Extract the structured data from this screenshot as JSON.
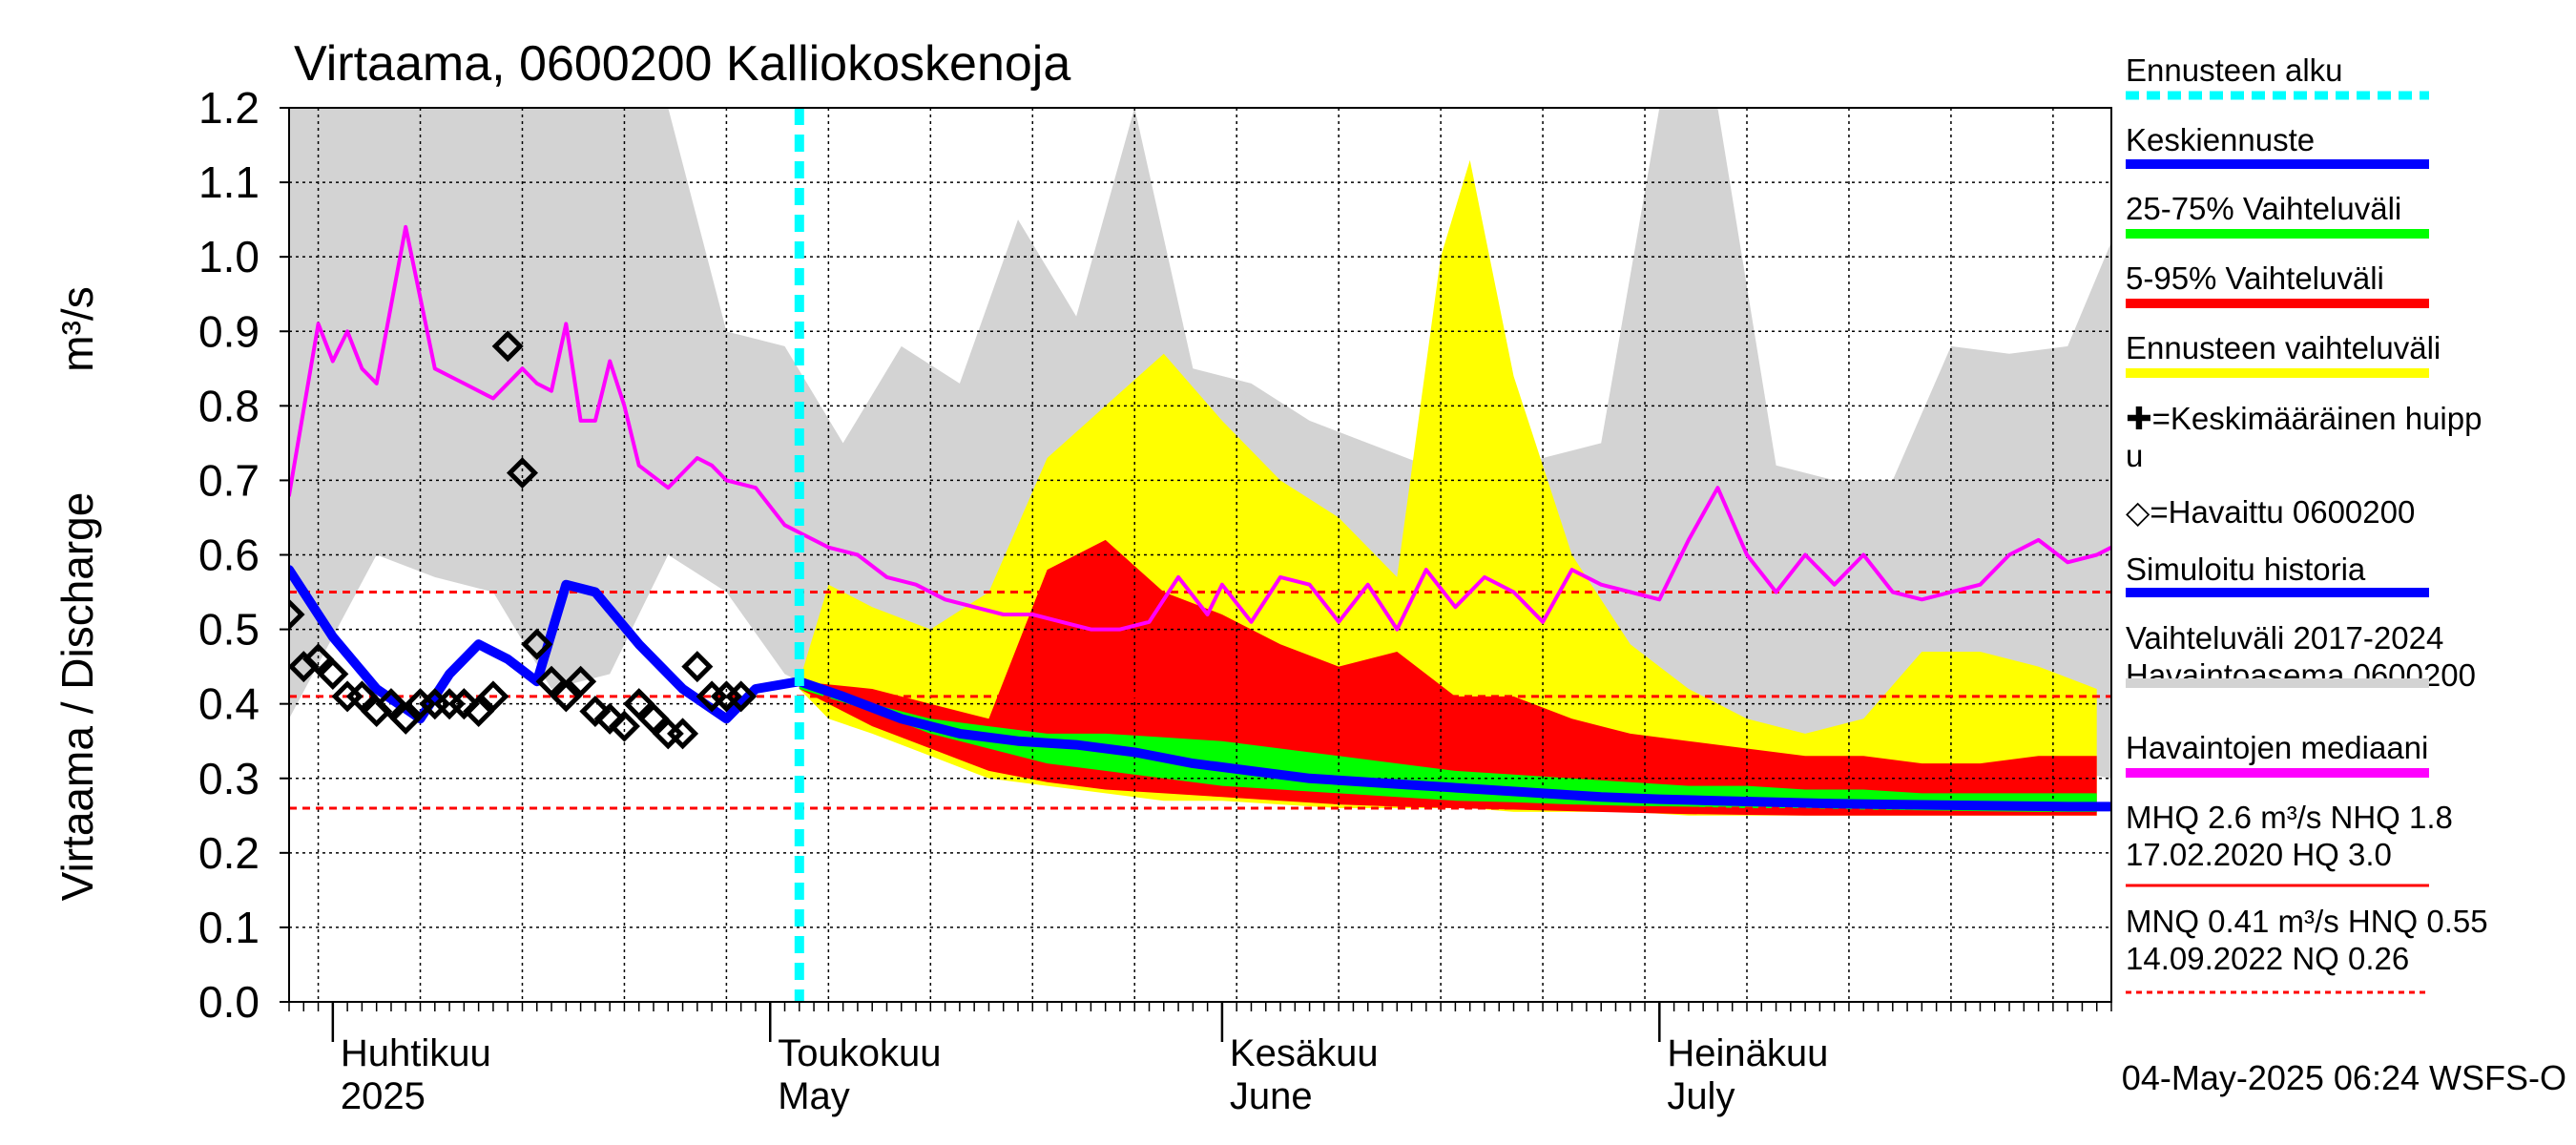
{
  "chart_data": {
    "type": "area",
    "title": "Virtaama, 0600200 Kalliokoskenoja",
    "ylabel": "Virtaama / Discharge",
    "yunit": "m³/s",
    "ylim": [
      0.0,
      1.2
    ],
    "yticks": [
      "0.0",
      "0.1",
      "0.2",
      "0.3",
      "0.4",
      "0.5",
      "0.6",
      "0.7",
      "0.8",
      "0.9",
      "1.0",
      "1.1",
      "1.2"
    ],
    "x_start": "2025-03-29",
    "x_end": "2025-08-01",
    "month_labels": [
      {
        "date": "2025-04-01",
        "fi": "Huhtikuu",
        "en": "2025"
      },
      {
        "date": "2025-05-01",
        "fi": "Toukokuu",
        "en": "May"
      },
      {
        "date": "2025-06-01",
        "fi": "Kesäkuu",
        "en": "June"
      },
      {
        "date": "2025-07-01",
        "fi": "Heinäkuu",
        "en": "July"
      }
    ],
    "forecast_start": "2025-05-03",
    "reference_lines": [
      {
        "name": "HNQ",
        "value": 0.55
      },
      {
        "name": "MNQ",
        "value": 0.41
      },
      {
        "name": "NQ",
        "value": 0.26
      }
    ],
    "series": [
      {
        "name": "Vaihteluväli 2017-2024 Havaintoasema 0600200",
        "kind": "band",
        "x": [
          "2025-03-29",
          "2025-04-04",
          "2025-04-08",
          "2025-04-12",
          "2025-04-16",
          "2025-04-20",
          "2025-04-24",
          "2025-04-28",
          "2025-05-02",
          "2025-05-06",
          "2025-05-10",
          "2025-05-14",
          "2025-05-18",
          "2025-05-22",
          "2025-05-26",
          "2025-05-30",
          "2025-06-03",
          "2025-06-07",
          "2025-06-11",
          "2025-06-15",
          "2025-06-19",
          "2025-06-23",
          "2025-06-27",
          "2025-07-01",
          "2025-07-05",
          "2025-07-09",
          "2025-07-13",
          "2025-07-17",
          "2025-07-21",
          "2025-07-25",
          "2025-07-29",
          "2025-08-01"
        ],
        "upper": [
          1.2,
          1.2,
          1.2,
          1.2,
          1.2,
          1.2,
          1.2,
          0.9,
          0.88,
          0.75,
          0.88,
          0.83,
          1.05,
          0.92,
          1.2,
          0.85,
          0.83,
          0.78,
          0.75,
          0.72,
          0.7,
          0.73,
          0.75,
          1.2,
          1.2,
          0.72,
          0.7,
          0.7,
          0.88,
          0.87,
          0.88,
          1.02
        ],
        "lower": [
          0.38,
          0.6,
          0.57,
          0.55,
          0.42,
          0.44,
          0.6,
          0.55,
          0.44,
          0.4,
          0.36,
          0.33,
          0.32,
          0.31,
          0.3,
          0.29,
          0.28,
          0.28,
          0.28,
          0.27,
          0.27,
          0.28,
          0.38,
          0.42,
          0.4,
          0.35,
          0.33,
          0.32,
          0.3,
          0.3,
          0.31,
          0.3
        ],
        "color": "#d3d3d3"
      },
      {
        "name": "Ennusteen vaihteluväli",
        "kind": "band",
        "x": [
          "2025-05-03",
          "2025-05-05",
          "2025-05-08",
          "2025-05-12",
          "2025-05-16",
          "2025-05-20",
          "2025-05-24",
          "2025-05-28",
          "2025-06-01",
          "2025-06-05",
          "2025-06-09",
          "2025-06-13",
          "2025-06-16",
          "2025-06-18",
          "2025-06-21",
          "2025-06-25",
          "2025-06-29",
          "2025-07-03",
          "2025-07-07",
          "2025-07-11",
          "2025-07-15",
          "2025-07-19",
          "2025-07-23",
          "2025-07-27",
          "2025-07-31"
        ],
        "upper": [
          0.43,
          0.56,
          0.53,
          0.5,
          0.55,
          0.73,
          0.8,
          0.87,
          0.78,
          0.7,
          0.65,
          0.57,
          1.0,
          1.13,
          0.84,
          0.6,
          0.48,
          0.42,
          0.38,
          0.36,
          0.38,
          0.47,
          0.47,
          0.45,
          0.42
        ],
        "lower": [
          0.42,
          0.38,
          0.36,
          0.33,
          0.3,
          0.29,
          0.28,
          0.27,
          0.27,
          0.265,
          0.26,
          0.26,
          0.26,
          0.26,
          0.255,
          0.255,
          0.255,
          0.25,
          0.25,
          0.25,
          0.25,
          0.25,
          0.25,
          0.25,
          0.25
        ],
        "color": "#ffff00"
      },
      {
        "name": "5-95% Vaihteluväli",
        "kind": "band",
        "x": [
          "2025-05-03",
          "2025-05-08",
          "2025-05-12",
          "2025-05-16",
          "2025-05-20",
          "2025-05-24",
          "2025-05-28",
          "2025-06-01",
          "2025-06-05",
          "2025-06-09",
          "2025-06-13",
          "2025-06-17",
          "2025-06-21",
          "2025-06-25",
          "2025-06-29",
          "2025-07-03",
          "2025-07-07",
          "2025-07-11",
          "2025-07-15",
          "2025-07-19",
          "2025-07-23",
          "2025-07-27",
          "2025-07-31"
        ],
        "upper": [
          0.43,
          0.42,
          0.4,
          0.38,
          0.58,
          0.62,
          0.55,
          0.52,
          0.48,
          0.45,
          0.47,
          0.41,
          0.41,
          0.38,
          0.36,
          0.35,
          0.34,
          0.33,
          0.33,
          0.32,
          0.32,
          0.33,
          0.33
        ],
        "lower": [
          0.42,
          0.37,
          0.34,
          0.31,
          0.295,
          0.285,
          0.28,
          0.275,
          0.27,
          0.265,
          0.262,
          0.26,
          0.258,
          0.256,
          0.254,
          0.252,
          0.251,
          0.25,
          0.25,
          0.25,
          0.25,
          0.25,
          0.25
        ],
        "color": "#ff0000"
      },
      {
        "name": "25-75% Vaihteluväli",
        "kind": "band",
        "x": [
          "2025-05-03",
          "2025-05-08",
          "2025-05-12",
          "2025-05-16",
          "2025-05-20",
          "2025-05-24",
          "2025-05-28",
          "2025-06-01",
          "2025-06-05",
          "2025-06-09",
          "2025-06-13",
          "2025-06-17",
          "2025-06-21",
          "2025-06-25",
          "2025-06-29",
          "2025-07-03",
          "2025-07-07",
          "2025-07-11",
          "2025-07-15",
          "2025-07-19",
          "2025-07-23",
          "2025-07-27",
          "2025-07-31"
        ],
        "upper": [
          0.43,
          0.4,
          0.38,
          0.37,
          0.36,
          0.36,
          0.355,
          0.35,
          0.34,
          0.33,
          0.32,
          0.31,
          0.305,
          0.3,
          0.295,
          0.29,
          0.29,
          0.285,
          0.285,
          0.28,
          0.28,
          0.28,
          0.28
        ],
        "lower": [
          0.42,
          0.39,
          0.36,
          0.34,
          0.32,
          0.31,
          0.3,
          0.29,
          0.285,
          0.28,
          0.275,
          0.27,
          0.268,
          0.265,
          0.263,
          0.262,
          0.26,
          0.26,
          0.258,
          0.257,
          0.256,
          0.255,
          0.255
        ],
        "color": "#00ff00"
      },
      {
        "name": "Havaintojen mediaani",
        "kind": "line",
        "x": [
          "2025-03-29",
          "2025-03-31",
          "2025-04-01",
          "2025-04-02",
          "2025-04-03",
          "2025-04-04",
          "2025-04-06",
          "2025-04-08",
          "2025-04-09",
          "2025-04-10",
          "2025-04-12",
          "2025-04-14",
          "2025-04-15",
          "2025-04-16",
          "2025-04-17",
          "2025-04-18",
          "2025-04-19",
          "2025-04-20",
          "2025-04-21",
          "2025-04-22",
          "2025-04-24",
          "2025-04-26",
          "2025-04-27",
          "2025-04-28",
          "2025-04-30",
          "2025-05-02",
          "2025-05-03",
          "2025-05-05",
          "2025-05-07",
          "2025-05-09",
          "2025-05-11",
          "2025-05-13",
          "2025-05-15",
          "2025-05-17",
          "2025-05-19",
          "2025-05-21",
          "2025-05-23",
          "2025-05-25",
          "2025-05-27",
          "2025-05-29",
          "2025-05-31",
          "2025-06-01",
          "2025-06-03",
          "2025-06-05",
          "2025-06-07",
          "2025-06-09",
          "2025-06-11",
          "2025-06-13",
          "2025-06-15",
          "2025-06-17",
          "2025-06-19",
          "2025-06-21",
          "2025-06-23",
          "2025-06-25",
          "2025-06-27",
          "2025-06-29",
          "2025-07-01",
          "2025-07-03",
          "2025-07-05",
          "2025-07-07",
          "2025-07-09",
          "2025-07-11",
          "2025-07-13",
          "2025-07-15",
          "2025-07-17",
          "2025-07-19",
          "2025-07-21",
          "2025-07-23",
          "2025-07-25",
          "2025-07-27",
          "2025-07-29",
          "2025-07-31",
          "2025-08-01"
        ],
        "values": [
          0.68,
          0.91,
          0.86,
          0.9,
          0.85,
          0.83,
          1.04,
          0.85,
          0.84,
          0.83,
          0.81,
          0.85,
          0.83,
          0.82,
          0.91,
          0.78,
          0.78,
          0.86,
          0.8,
          0.72,
          0.69,
          0.73,
          0.72,
          0.7,
          0.69,
          0.64,
          0.63,
          0.61,
          0.6,
          0.57,
          0.56,
          0.54,
          0.53,
          0.52,
          0.52,
          0.51,
          0.5,
          0.5,
          0.51,
          0.57,
          0.52,
          0.56,
          0.51,
          0.57,
          0.56,
          0.51,
          0.56,
          0.5,
          0.58,
          0.53,
          0.57,
          0.55,
          0.51,
          0.58,
          0.56,
          0.55,
          0.54,
          0.62,
          0.69,
          0.6,
          0.55,
          0.6,
          0.56,
          0.6,
          0.55,
          0.54,
          0.55,
          0.56,
          0.6,
          0.62,
          0.59,
          0.6,
          0.61
        ],
        "color": "#ff00ff"
      },
      {
        "name": "Simuloitu historia",
        "kind": "line",
        "x": [
          "2025-03-29",
          "2025-04-01",
          "2025-04-04",
          "2025-04-07",
          "2025-04-09",
          "2025-04-11",
          "2025-04-13",
          "2025-04-15",
          "2025-04-17",
          "2025-04-19",
          "2025-04-22",
          "2025-04-25",
          "2025-04-28",
          "2025-04-30",
          "2025-05-03"
        ],
        "values": [
          0.58,
          0.49,
          0.42,
          0.38,
          0.44,
          0.48,
          0.46,
          0.43,
          0.56,
          0.55,
          0.48,
          0.42,
          0.38,
          0.42,
          0.43
        ],
        "color": "#0000ff"
      },
      {
        "name": "Keskiennuste",
        "kind": "line",
        "x": [
          "2025-05-03",
          "2025-05-06",
          "2025-05-10",
          "2025-05-14",
          "2025-05-18",
          "2025-05-22",
          "2025-05-26",
          "2025-05-30",
          "2025-06-03",
          "2025-06-07",
          "2025-06-11",
          "2025-06-15",
          "2025-06-19",
          "2025-06-23",
          "2025-06-27",
          "2025-07-01",
          "2025-07-05",
          "2025-07-09",
          "2025-07-13",
          "2025-07-17",
          "2025-07-21",
          "2025-07-25",
          "2025-07-29",
          "2025-08-01"
        ],
        "values": [
          0.43,
          0.41,
          0.38,
          0.36,
          0.35,
          0.345,
          0.335,
          0.32,
          0.31,
          0.3,
          0.295,
          0.29,
          0.285,
          0.28,
          0.275,
          0.272,
          0.27,
          0.268,
          0.266,
          0.265,
          0.264,
          0.263,
          0.262,
          0.262
        ],
        "color": "#0000ff"
      },
      {
        "name": "Havaittu 0600200",
        "kind": "markers",
        "x": [
          "2025-03-29",
          "2025-03-30",
          "2025-03-31",
          "2025-04-01",
          "2025-04-02",
          "2025-04-03",
          "2025-04-04",
          "2025-04-05",
          "2025-04-06",
          "2025-04-07",
          "2025-04-08",
          "2025-04-09",
          "2025-04-10",
          "2025-04-11",
          "2025-04-12",
          "2025-04-13",
          "2025-04-14",
          "2025-04-15",
          "2025-04-16",
          "2025-04-17",
          "2025-04-18",
          "2025-04-19",
          "2025-04-20",
          "2025-04-21",
          "2025-04-22",
          "2025-04-23",
          "2025-04-24",
          "2025-04-25",
          "2025-04-26",
          "2025-04-27",
          "2025-04-28",
          "2025-04-29"
        ],
        "values": [
          0.52,
          0.45,
          0.46,
          0.44,
          0.41,
          0.41,
          0.39,
          0.4,
          0.38,
          0.4,
          0.4,
          0.4,
          0.4,
          0.39,
          0.41,
          0.88,
          0.71,
          0.48,
          0.43,
          0.41,
          0.43,
          0.39,
          0.38,
          0.37,
          0.4,
          0.38,
          0.36,
          0.36,
          0.45,
          0.41,
          0.41,
          0.41
        ],
        "color": "#000000"
      }
    ],
    "legend": [
      {
        "label": "Ennusteen alku",
        "style": "dash",
        "color": "#00ffff"
      },
      {
        "label": "Keskiennuste",
        "style": "line",
        "color": "#0000ff"
      },
      {
        "label": "25-75% Vaihteluväli",
        "style": "line",
        "color": "#00ff00"
      },
      {
        "label": "5-95% Vaihteluväli",
        "style": "line",
        "color": "#ff0000"
      },
      {
        "label": "Ennusteen vaihteluväli",
        "style": "line",
        "color": "#ffff00"
      },
      {
        "label": "✚=Keskimääräinen huipp\nu",
        "style": "none",
        "color": "#000000"
      },
      {
        "label": "◇=Havaittu 0600200",
        "style": "none",
        "color": "#000000"
      },
      {
        "label": "Simuloitu historia",
        "style": "line",
        "color": "#0000ff"
      },
      {
        "label": "Vaihteluväli 2017-2024\n Havaintoasema 0600200",
        "style": "line",
        "color": "#d3d3d3"
      },
      {
        "label": "Havaintojen mediaani",
        "style": "line",
        "color": "#ff00ff"
      },
      {
        "label": "MHQ  2.6 m³/s NHQ  1.8\n17.02.2020 HQ  3.0",
        "style": "thin",
        "color": "#ff0000"
      },
      {
        "label": "MNQ 0.41 m³/s HNQ 0.55\n14.09.2022 NQ 0.26",
        "style": "dashthin",
        "color": "#ff0000"
      }
    ],
    "footer": "04-May-2025 06:24 WSFS-O",
    "grid": true
  }
}
